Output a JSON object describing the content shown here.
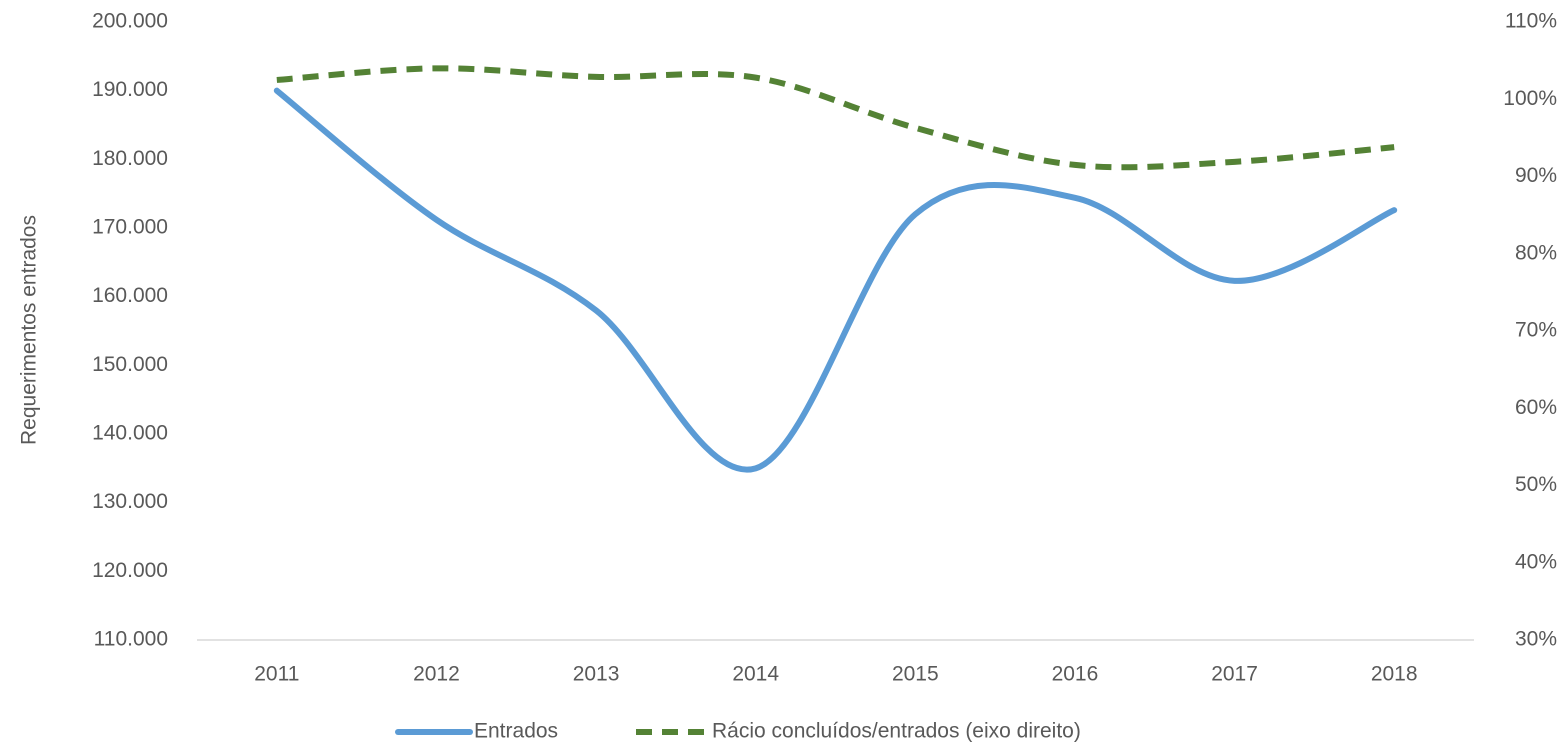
{
  "chart_data": {
    "type": "line",
    "y_label": "Requerimentos entrados",
    "categories": [
      "2011",
      "2012",
      "2013",
      "2014",
      "2015",
      "2016",
      "2017",
      "2018"
    ],
    "series": [
      {
        "name": "Entrados",
        "color": "#5b9bd5",
        "values": [
          190000,
          171200,
          158000,
          135000,
          172000,
          174400,
          162300,
          172600
        ]
      },
      {
        "name": "Rácio concluídos/entrados (eixo direito)",
        "color": "#548235",
        "axis": "y2",
        "dashed": true,
        "values": [
          102.5,
          104,
          102.9,
          102.8,
          96.3,
          91.5,
          91.9,
          93.8
        ]
      }
    ],
    "ylim": [
      110000,
      200000
    ],
    "yticks": [
      {
        "value": 110000,
        "label": "110.000"
      },
      {
        "value": 120000,
        "label": "120.000"
      },
      {
        "value": 130000,
        "label": "130.000"
      },
      {
        "value": 140000,
        "label": "140.000"
      },
      {
        "value": 150000,
        "label": "150.000"
      },
      {
        "value": 160000,
        "label": "160.000"
      },
      {
        "value": 170000,
        "label": "170.000"
      },
      {
        "value": 180000,
        "label": "180.000"
      },
      {
        "value": 190000,
        "label": "190.000"
      },
      {
        "value": 200000,
        "label": "200.000"
      }
    ],
    "y2lim": [
      30,
      110
    ],
    "y2ticks": [
      {
        "value": 30,
        "label": "30%"
      },
      {
        "value": 40,
        "label": "40%"
      },
      {
        "value": 50,
        "label": "50%"
      },
      {
        "value": 60,
        "label": "60%"
      },
      {
        "value": 70,
        "label": "70%"
      },
      {
        "value": 80,
        "label": "80%"
      },
      {
        "value": 90,
        "label": "90%"
      },
      {
        "value": 100,
        "label": "100%"
      },
      {
        "value": 110,
        "label": "110%"
      }
    ],
    "grid": false,
    "smooth": true,
    "legend": "bottom"
  }
}
